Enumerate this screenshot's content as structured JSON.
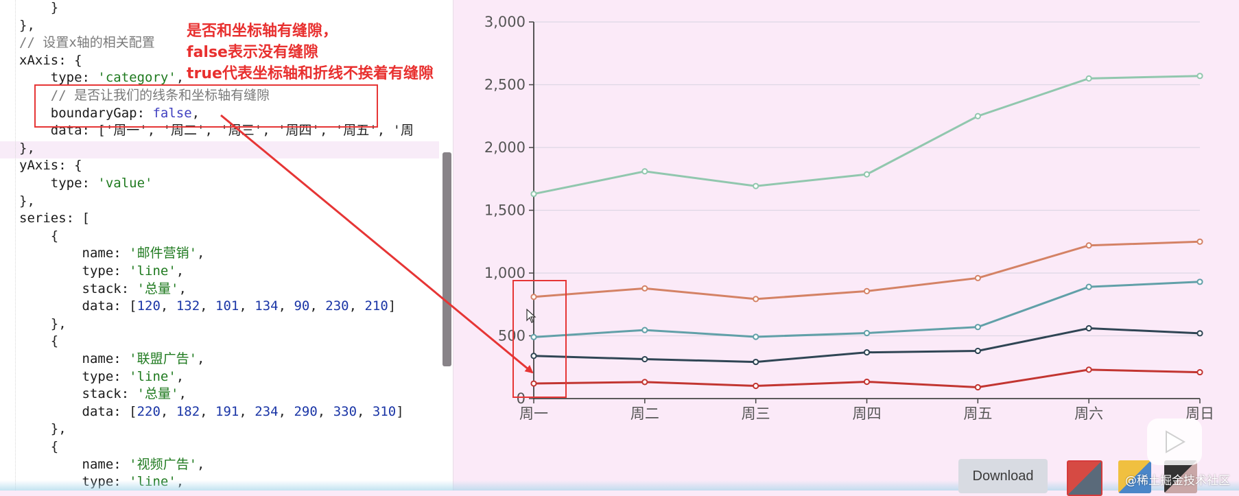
{
  "editor": {
    "lines": [
      [
        {
          "t": "    }",
          "c": "plain"
        }
      ],
      [
        {
          "t": "},",
          "c": "plain"
        }
      ],
      [
        {
          "t": "// 设置x轴的相关配置",
          "c": "cmt"
        }
      ],
      [
        {
          "t": "xAxis: {",
          "c": "key"
        }
      ],
      [
        {
          "t": "    type: ",
          "c": "key"
        },
        {
          "t": "'category'",
          "c": "str"
        },
        {
          "t": ",",
          "c": "plain"
        }
      ],
      [
        {
          "t": "    // 是否让我们的线条和坐标轴有缝隙",
          "c": "cmt"
        }
      ],
      [
        {
          "t": "    boundaryGap: ",
          "c": "key"
        },
        {
          "t": "false",
          "c": "bool"
        },
        {
          "t": ",",
          "c": "plain"
        }
      ],
      [
        {
          "t": "    data: ['周一', '周二', '周三', '周四', '周五', '周",
          "c": "plain"
        }
      ],
      [
        {
          "t": "},",
          "c": "plain"
        }
      ],
      [
        {
          "t": "yAxis: {",
          "c": "key"
        }
      ],
      [
        {
          "t": "    type: ",
          "c": "key"
        },
        {
          "t": "'value'",
          "c": "str"
        }
      ],
      [
        {
          "t": "},",
          "c": "plain"
        }
      ],
      [
        {
          "t": "series: [",
          "c": "key"
        }
      ],
      [
        {
          "t": "    {",
          "c": "plain"
        }
      ],
      [
        {
          "t": "        name: ",
          "c": "key"
        },
        {
          "t": "'邮件营销'",
          "c": "str"
        },
        {
          "t": ",",
          "c": "plain"
        }
      ],
      [
        {
          "t": "        type: ",
          "c": "key"
        },
        {
          "t": "'line'",
          "c": "str"
        },
        {
          "t": ",",
          "c": "plain"
        }
      ],
      [
        {
          "t": "        stack: ",
          "c": "key"
        },
        {
          "t": "'总量'",
          "c": "str"
        },
        {
          "t": ",",
          "c": "plain"
        }
      ],
      [
        {
          "t": "        data: [",
          "c": "key"
        },
        {
          "t": "120",
          "c": "num"
        },
        {
          "t": ", ",
          "c": "plain"
        },
        {
          "t": "132",
          "c": "num"
        },
        {
          "t": ", ",
          "c": "plain"
        },
        {
          "t": "101",
          "c": "num"
        },
        {
          "t": ", ",
          "c": "plain"
        },
        {
          "t": "134",
          "c": "num"
        },
        {
          "t": ", ",
          "c": "plain"
        },
        {
          "t": "90",
          "c": "num"
        },
        {
          "t": ", ",
          "c": "plain"
        },
        {
          "t": "230",
          "c": "num"
        },
        {
          "t": ", ",
          "c": "plain"
        },
        {
          "t": "210",
          "c": "num"
        },
        {
          "t": "]",
          "c": "plain"
        }
      ],
      [
        {
          "t": "    },",
          "c": "plain"
        }
      ],
      [
        {
          "t": "    {",
          "c": "plain"
        }
      ],
      [
        {
          "t": "        name: ",
          "c": "key"
        },
        {
          "t": "'联盟广告'",
          "c": "str"
        },
        {
          "t": ",",
          "c": "plain"
        }
      ],
      [
        {
          "t": "        type: ",
          "c": "key"
        },
        {
          "t": "'line'",
          "c": "str"
        },
        {
          "t": ",",
          "c": "plain"
        }
      ],
      [
        {
          "t": "        stack: ",
          "c": "key"
        },
        {
          "t": "'总量'",
          "c": "str"
        },
        {
          "t": ",",
          "c": "plain"
        }
      ],
      [
        {
          "t": "        data: [",
          "c": "key"
        },
        {
          "t": "220",
          "c": "num"
        },
        {
          "t": ", ",
          "c": "plain"
        },
        {
          "t": "182",
          "c": "num"
        },
        {
          "t": ", ",
          "c": "plain"
        },
        {
          "t": "191",
          "c": "num"
        },
        {
          "t": ", ",
          "c": "plain"
        },
        {
          "t": "234",
          "c": "num"
        },
        {
          "t": ", ",
          "c": "plain"
        },
        {
          "t": "290",
          "c": "num"
        },
        {
          "t": ", ",
          "c": "plain"
        },
        {
          "t": "330",
          "c": "num"
        },
        {
          "t": ", ",
          "c": "plain"
        },
        {
          "t": "310",
          "c": "num"
        },
        {
          "t": "]",
          "c": "plain"
        }
      ],
      [
        {
          "t": "    },",
          "c": "plain"
        }
      ],
      [
        {
          "t": "    {",
          "c": "plain"
        }
      ],
      [
        {
          "t": "        name: ",
          "c": "key"
        },
        {
          "t": "'视频广告'",
          "c": "str"
        },
        {
          "t": ",",
          "c": "plain"
        }
      ],
      [
        {
          "t": "        type: ",
          "c": "key"
        },
        {
          "t": "'line'",
          "c": "str"
        },
        {
          "t": ",",
          "c": "plain"
        }
      ]
    ]
  },
  "annotation": {
    "line1": "是否和坐标轴有缝隙，",
    "line2": "false表示没有缝隙",
    "line3": "true代表坐标轴和折线不挨着有缝隙"
  },
  "chart_data": {
    "type": "line",
    "categories": [
      "周一",
      "周二",
      "周三",
      "周四",
      "周五",
      "周六",
      "周日"
    ],
    "y_ticks": [
      "0",
      "500",
      "1,000",
      "1,500",
      "2,000",
      "2,500",
      "3,000"
    ],
    "ylim": [
      0,
      3000
    ],
    "grid": true,
    "series": [
      {
        "values": [
          120,
          132,
          101,
          134,
          90,
          230,
          210
        ],
        "color": "#c23531"
      },
      {
        "values": [
          340,
          314,
          292,
          368,
          380,
          560,
          520
        ],
        "color": "#2f4554"
      },
      {
        "values": [
          490,
          546,
          492,
          522,
          570,
          890,
          930
        ],
        "color": "#61a0a8"
      },
      {
        "values": [
          810,
          878,
          793,
          856,
          960,
          1220,
          1250
        ],
        "color": "#d48265"
      },
      {
        "values": [
          1630,
          1810,
          1693,
          1786,
          2250,
          2550,
          2570
        ],
        "color": "#91c7ae"
      }
    ]
  },
  "toolbar": {
    "download_label": "Download"
  },
  "watermark": "@稀土掘金技术社区"
}
